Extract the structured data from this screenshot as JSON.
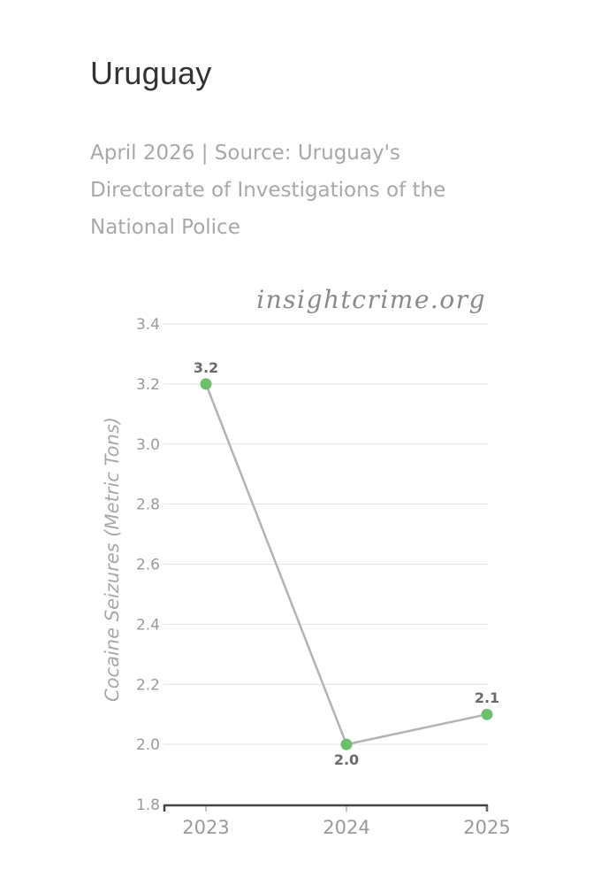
{
  "header": {
    "title": "Uruguay",
    "subtitle": "April 2026 | Source: Uruguay's Directorate of Investigations of the National Police",
    "watermark": "insightcrime.org"
  },
  "chart_data": {
    "type": "line",
    "title": "Uruguay",
    "subtitle": "April 2026 | Source: Uruguay's Directorate of Investigations of the National Police",
    "xlabel": "",
    "ylabel": "Cocaine Seizures (Metric Tons)",
    "categories": [
      "2023",
      "2024",
      "2025"
    ],
    "series": [
      {
        "values": [
          3.2,
          2.0,
          2.1
        ],
        "labels": [
          "3.2",
          "2.0",
          "2.1"
        ]
      }
    ],
    "ylim": [
      1.8,
      3.4
    ],
    "yticks": [
      "1.8",
      "2.0",
      "2.2",
      "2.4",
      "2.6",
      "2.8",
      "3.0",
      "3.2",
      "3.4"
    ],
    "grid": true,
    "legend": "none",
    "colors": {
      "line": "#b3b3b3",
      "marker": "#6cbf6b",
      "grid": "#e2e2e2",
      "axis": "#444444"
    }
  }
}
